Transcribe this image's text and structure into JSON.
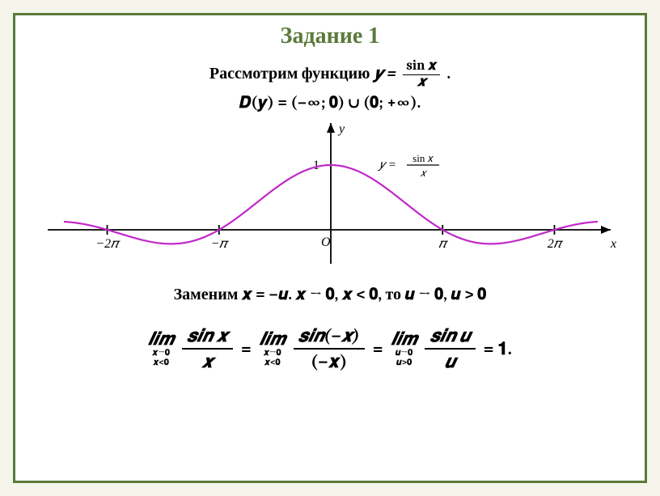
{
  "title": "Задание 1",
  "func_intro": "Рассмотрим функцию ",
  "func_y": "𝒚 =",
  "func_num": "sin 𝒙",
  "func_den": "𝒙",
  "period": " .",
  "domain": "𝑫(𝒚) = (−∞; 𝟎) ∪ (𝟎; +∞).",
  "subst": "Заменим 𝒙 = −𝒖. 𝒙 → 𝟎, 𝒙 < 𝟎, то 𝒖 → 𝟎, 𝒖 > 𝟎",
  "lim1_word": "𝒍𝒊𝒎",
  "lim1_sub1": "𝒙→𝟎",
  "lim1_sub2": "𝒙<𝟎",
  "lim1_num": "𝒔𝒊𝒏 𝒙",
  "lim1_den": "𝒙",
  "eq1": "=",
  "lim2_word": "𝒍𝒊𝒎",
  "lim2_sub1": "𝒙→𝟎",
  "lim2_sub2": "𝒙<𝟎",
  "lim2_num": "𝒔𝒊𝒏(−𝒙)",
  "lim2_den": "(−𝒙)",
  "eq2": "=",
  "lim3_word": "𝒍𝒊𝒎",
  "lim3_sub1": "𝒖→𝟎",
  "lim3_sub2": "𝒖>𝟎",
  "lim3_num": "𝒔𝒊𝒏 𝒖",
  "lim3_den": "𝒖",
  "eq3": "= 𝟏.",
  "chart": {
    "type": "line",
    "xlim": [
      -7.5,
      7.5
    ],
    "ylim": [
      -0.3,
      1.3
    ],
    "curve_color": "#c028c8",
    "axis_color": "#000000",
    "background": "#ffffff",
    "curve_width": 2.2,
    "xticks": [
      {
        "pos": -6.2832,
        "label": "−2𝜋"
      },
      {
        "pos": -3.1416,
        "label": "−𝜋"
      },
      {
        "pos": 3.1416,
        "label": "𝜋"
      },
      {
        "pos": 6.2832,
        "label": "2𝜋"
      }
    ],
    "ytick": {
      "pos": 1,
      "label": "1"
    },
    "origin_label": "O",
    "x_label": "x",
    "y_label": "y",
    "graph_label_prefix": "𝑦 =",
    "graph_label_num": "sin 𝑥",
    "graph_label_den": "𝑥"
  }
}
